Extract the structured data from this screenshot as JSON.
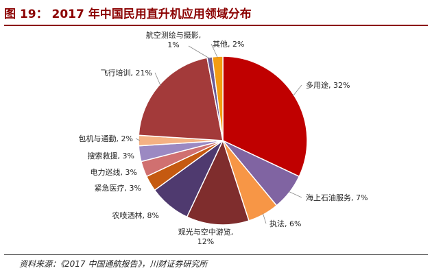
{
  "figure": {
    "title": "图 19： 2017 年中国民用直升机应用领域分布",
    "source": "资料来源：《2017 中国通航报告》，川财证券研究所"
  },
  "chart_data": {
    "type": "pie",
    "unit": "%",
    "slices": [
      {
        "label": "多用途",
        "value": 32,
        "color": "#c00000"
      },
      {
        "label": "海上石油服务",
        "value": 7,
        "color": "#8064a2"
      },
      {
        "label": "执法",
        "value": 6,
        "color": "#f79646"
      },
      {
        "label": "观光与空中游览",
        "value": 12,
        "color": "#7f2d2d"
      },
      {
        "label": "农喷洒林",
        "value": 8,
        "color": "#4f3a6f"
      },
      {
        "label": "紧急医疗",
        "value": 3,
        "color": "#c55a11"
      },
      {
        "label": "电力巡线",
        "value": 3,
        "color": "#d07070"
      },
      {
        "label": "搜索救援",
        "value": 3,
        "color": "#9b89c2"
      },
      {
        "label": "包机与通勤",
        "value": 2,
        "color": "#f4b183"
      },
      {
        "label": "飞行培训",
        "value": 21,
        "color": "#a33a3a"
      },
      {
        "label": "航空测绘与摄影",
        "value": 1,
        "color": "#6b5b95"
      },
      {
        "label": "其他",
        "value": 2,
        "color": "#f39c12"
      }
    ],
    "labels": [
      "多用途, 32%",
      "海上石油服务, 7%",
      "执法, 6%",
      [
        "观光与空中游览,",
        "12%"
      ],
      "农喷洒林, 8%",
      "紧急医疗, 3%",
      "电力巡线, 3%",
      "搜索救援, 3%",
      "包机与通勤, 2%",
      "飞行培训, 21%",
      [
        "航空测绘与摄影,",
        "1%"
      ],
      "其他, 2%"
    ]
  }
}
